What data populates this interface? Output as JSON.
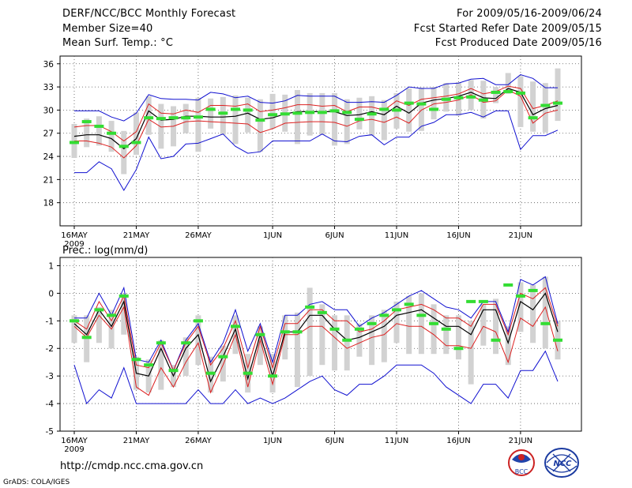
{
  "header": {
    "title": "DERF/NCC/BCC Monthly Forecast",
    "member": "Member Size=40",
    "variable": "Mean Surf. Temp.: °C",
    "period": "For 2009/05/16-2009/06/24",
    "refer": "Fcst Started Refer Date 2009/05/15",
    "produced": "Fcst Produced Date 2009/05/16"
  },
  "footer": {
    "url": "http://cmdp.ncc.cma.gov.cn",
    "grads": "GrADS: COLA/IGES",
    "logo_bcc": "BCC",
    "logo_ncc": "NCC"
  },
  "colors": {
    "envelope": "#1010d0",
    "spread": "#dd2020",
    "mean": "#000000",
    "box": "#d2d2d2",
    "marker": "#33dd33",
    "grid": "#555555"
  },
  "chart_data": [
    {
      "type": "line",
      "title": "Mean Surf. Temp.: °C",
      "ylim": [
        15,
        37
      ],
      "yticks": [
        "36",
        "33",
        "30",
        "27",
        "24",
        "21",
        "18"
      ],
      "ytick_values": [
        36,
        33,
        30,
        27,
        24,
        21,
        18
      ],
      "xticks": [
        "16MAY",
        "21MAY",
        "26MAY",
        "1JUN",
        "6JUN",
        "11JUN",
        "16JUN",
        "21JUN"
      ],
      "xtick_days": [
        1,
        6,
        11,
        17,
        22,
        27,
        32,
        37
      ],
      "x_year": "2009",
      "days": 40,
      "series": [
        {
          "name": "max",
          "values": [
            29.9,
            29.9,
            29.9,
            29.1,
            28.6,
            29.6,
            32.0,
            31.5,
            31.4,
            31.4,
            31.3,
            32.3,
            32.1,
            31.6,
            31.8,
            31.0,
            30.9,
            31.2,
            31.9,
            31.8,
            31.8,
            31.8,
            31.0,
            31.0,
            31.1,
            31.0,
            31.9,
            33.0,
            32.8,
            32.8,
            33.4,
            33.5,
            34.0,
            34.1,
            33.3,
            33.3,
            34.6,
            34.1,
            32.9,
            32.9
          ]
        },
        {
          "name": "upper",
          "values": [
            27.8,
            28.0,
            28.0,
            27.2,
            26.0,
            27.2,
            30.8,
            29.6,
            29.5,
            30.0,
            29.7,
            30.6,
            30.6,
            30.5,
            30.8,
            29.8,
            30.0,
            30.3,
            30.7,
            30.7,
            30.5,
            30.6,
            29.8,
            30.4,
            30.4,
            30.0,
            31.2,
            30.6,
            31.4,
            31.6,
            31.8,
            32.1,
            32.8,
            32.1,
            32.4,
            33.1,
            32.8,
            30.2,
            30.6,
            31.2
          ]
        },
        {
          "name": "mean",
          "values": [
            26.6,
            26.8,
            26.8,
            26.3,
            25.0,
            26.3,
            29.9,
            28.7,
            28.8,
            29.2,
            29.2,
            29.1,
            29.1,
            29.2,
            29.6,
            28.8,
            29.0,
            29.5,
            29.8,
            29.8,
            29.8,
            29.8,
            29.3,
            29.4,
            29.8,
            29.4,
            30.5,
            29.6,
            30.9,
            31.3,
            31.5,
            31.8,
            32.3,
            31.6,
            31.5,
            32.8,
            32.3,
            29.4,
            30.2,
            30.6
          ]
        },
        {
          "name": "lower",
          "values": [
            26.0,
            26.0,
            25.7,
            25.2,
            23.8,
            25.4,
            28.8,
            27.8,
            27.9,
            28.5,
            28.6,
            28.5,
            28.4,
            28.3,
            28.2,
            27.1,
            27.6,
            28.3,
            28.4,
            28.5,
            28.5,
            28.4,
            27.9,
            28.6,
            28.8,
            28.4,
            29.1,
            28.3,
            30.0,
            30.8,
            31.0,
            31.3,
            32.0,
            31.0,
            31.2,
            32.6,
            31.8,
            28.3,
            29.6,
            30.0
          ]
        },
        {
          "name": "min",
          "values": [
            21.9,
            21.9,
            23.3,
            22.4,
            19.6,
            22.3,
            26.5,
            23.7,
            24.0,
            25.6,
            25.7,
            26.3,
            26.9,
            25.3,
            24.4,
            24.6,
            26.0,
            26.0,
            26.0,
            26.0,
            26.9,
            26.0,
            25.9,
            26.6,
            26.8,
            25.5,
            26.5,
            26.5,
            27.9,
            28.4,
            29.4,
            29.4,
            29.7,
            29.1,
            29.9,
            29.9,
            24.9,
            26.7,
            26.7,
            27.4
          ]
        },
        {
          "name": "box_top",
          "values": [
            28.2,
            28.9,
            29.2,
            28.6,
            27.3,
            29.7,
            31.8,
            30.8,
            30.5,
            30.8,
            31.6,
            31.5,
            31.7,
            31.9,
            31.6,
            31.4,
            32.1,
            32.0,
            32.6,
            32.2,
            32.2,
            32.2,
            31.4,
            31.6,
            31.8,
            31.3,
            32.2,
            32.8,
            32.9,
            33.0,
            33.5,
            33.6,
            33.9,
            33.8,
            33.0,
            34.8,
            34.4,
            33.7,
            33.5,
            35.4
          ]
        },
        {
          "name": "box_bottom",
          "values": [
            23.8,
            25.2,
            25.4,
            24.6,
            21.7,
            24.2,
            26.8,
            25.0,
            25.3,
            27.0,
            24.6,
            27.6,
            26.8,
            25.6,
            27.1,
            24.6,
            27.6,
            27.2,
            25.6,
            26.7,
            26.8,
            25.4,
            25.6,
            27.5,
            26.7,
            26.1,
            27.6,
            27.2,
            27.3,
            28.8,
            29.8,
            29.3,
            30.0,
            28.9,
            30.9,
            32.1,
            27.8,
            27.2,
            27.1,
            28.6
          ]
        },
        {
          "name": "observed",
          "values": [
            25.8,
            28.5,
            27.9,
            27.0,
            25.3,
            25.8,
            29.0,
            28.9,
            29.0,
            29.0,
            29.1,
            30.1,
            29.6,
            30.1,
            30.0,
            28.7,
            29.4,
            29.5,
            29.6,
            29.7,
            29.7,
            29.9,
            29.7,
            28.8,
            29.5,
            30.1,
            30.0,
            30.9,
            30.8,
            30.1,
            31.4,
            31.6,
            31.7,
            31.3,
            32.3,
            32.4,
            32.2,
            29.0,
            30.6,
            30.9
          ]
        }
      ]
    },
    {
      "type": "line",
      "title": "Prec.: log(mm/d)",
      "ylim": [
        -5,
        1.3
      ],
      "yticks": [
        "1",
        "0",
        "-1",
        "-2",
        "-3",
        "-4",
        "-5"
      ],
      "ytick_values": [
        1,
        0,
        -1,
        -2,
        -3,
        -4,
        -5
      ],
      "xticks": [
        "16MAY",
        "21MAY",
        "26MAY",
        "1JUN",
        "6JUN",
        "11JUN",
        "16JUN",
        "21JUN"
      ],
      "xtick_days": [
        1,
        6,
        11,
        17,
        22,
        27,
        32,
        37
      ],
      "x_year": "2009",
      "days": 40,
      "series": [
        {
          "name": "max",
          "values": [
            -0.9,
            -0.9,
            0.0,
            -0.8,
            0.2,
            -2.4,
            -2.5,
            -1.7,
            -2.8,
            -1.7,
            -1.1,
            -2.5,
            -1.8,
            -0.6,
            -2.1,
            -1.1,
            -2.5,
            -0.8,
            -0.8,
            -0.4,
            -0.3,
            -0.6,
            -0.6,
            -1.2,
            -0.9,
            -0.7,
            -0.4,
            -0.1,
            0.1,
            -0.2,
            -0.5,
            -0.6,
            -0.9,
            -0.3,
            -0.3,
            -1.4,
            0.5,
            0.3,
            0.6,
            -1.1
          ]
        },
        {
          "name": "upper",
          "values": [
            -1.0,
            -1.3,
            -0.3,
            -1.0,
            -0.1,
            -2.6,
            -2.7,
            -1.8,
            -2.8,
            -1.8,
            -1.2,
            -2.6,
            -2.0,
            -1.0,
            -2.7,
            -1.2,
            -2.7,
            -1.1,
            -1.1,
            -0.6,
            -0.6,
            -1.0,
            -1.0,
            -1.4,
            -1.3,
            -1.0,
            -0.6,
            -0.5,
            -0.4,
            -0.6,
            -0.9,
            -0.9,
            -1.2,
            -0.4,
            -0.4,
            -1.5,
            0.0,
            -0.2,
            0.2,
            -1.2
          ]
        },
        {
          "name": "mean",
          "values": [
            -1.1,
            -1.5,
            -0.6,
            -1.2,
            -0.3,
            -2.9,
            -3.0,
            -2.0,
            -3.0,
            -2.0,
            -1.5,
            -3.2,
            -2.3,
            -1.3,
            -3.1,
            -1.5,
            -3.0,
            -1.4,
            -1.4,
            -0.8,
            -0.8,
            -1.3,
            -1.7,
            -1.6,
            -1.4,
            -1.2,
            -0.8,
            -0.7,
            -0.6,
            -0.9,
            -1.2,
            -1.2,
            -1.5,
            -0.6,
            -0.6,
            -1.8,
            -0.3,
            -0.6,
            0.0,
            -1.4
          ]
        },
        {
          "name": "lower",
          "values": [
            -1.2,
            -1.6,
            -0.8,
            -1.3,
            -0.5,
            -3.4,
            -3.7,
            -2.7,
            -3.4,
            -2.5,
            -1.8,
            -3.6,
            -2.6,
            -1.5,
            -3.4,
            -1.7,
            -3.3,
            -1.5,
            -1.5,
            -1.2,
            -1.2,
            -1.6,
            -2.0,
            -1.8,
            -1.6,
            -1.5,
            -1.1,
            -1.2,
            -1.2,
            -1.5,
            -1.9,
            -1.9,
            -2.0,
            -1.2,
            -1.4,
            -2.5,
            -0.9,
            -1.2,
            -0.5,
            -2.1
          ]
        },
        {
          "name": "min",
          "values": [
            -2.6,
            -4.0,
            -3.5,
            -3.8,
            -2.7,
            -4.0,
            -4.0,
            -4.0,
            -4.0,
            -4.0,
            -3.5,
            -4.0,
            -4.0,
            -3.5,
            -4.0,
            -3.8,
            -4.0,
            -3.8,
            -3.5,
            -3.2,
            -3.0,
            -3.5,
            -3.7,
            -3.3,
            -3.3,
            -3.0,
            -2.6,
            -2.6,
            -2.6,
            -2.9,
            -3.4,
            -3.7,
            -4.0,
            -3.3,
            -3.3,
            -3.8,
            -2.8,
            -2.8,
            -2.1,
            -3.2
          ]
        },
        {
          "name": "box_top",
          "values": [
            -0.8,
            -0.8,
            -0.5,
            -0.6,
            0.0,
            -2.3,
            -2.4,
            -1.7,
            -2.6,
            -1.6,
            -0.8,
            -2.3,
            -1.9,
            -0.8,
            -2.2,
            -1.2,
            -2.2,
            -0.8,
            -0.7,
            0.2,
            -0.4,
            -0.8,
            -0.8,
            -1.1,
            -0.8,
            -0.6,
            -0.3,
            -0.1,
            0.0,
            -0.4,
            -0.8,
            -0.8,
            -1.0,
            -0.4,
            -0.2,
            -1.2,
            0.4,
            0.3,
            0.6,
            -1.0
          ]
        },
        {
          "name": "box_bottom",
          "values": [
            -1.8,
            -2.5,
            -1.8,
            -2.0,
            -1.5,
            -3.5,
            -3.6,
            -3.5,
            -3.4,
            -3.0,
            -2.6,
            -3.6,
            -3.2,
            -2.2,
            -3.6,
            -2.6,
            -3.6,
            -2.4,
            -3.4,
            -3.0,
            -2.6,
            -2.8,
            -2.8,
            -2.3,
            -2.6,
            -2.5,
            -1.8,
            -2.2,
            -2.2,
            -2.2,
            -2.2,
            -2.4,
            -3.3,
            -1.9,
            -2.2,
            -2.6,
            -1.4,
            -1.8,
            -2.0,
            -2.4
          ]
        },
        {
          "name": "observed",
          "values": [
            -1.0,
            -1.6,
            -0.6,
            -0.8,
            -0.1,
            -2.4,
            -2.6,
            -1.8,
            -2.8,
            -1.8,
            -1.0,
            -2.9,
            -2.3,
            -1.2,
            -2.9,
            -1.5,
            -3.0,
            -1.4,
            -1.4,
            -0.5,
            -0.7,
            -1.3,
            -1.7,
            -1.3,
            -1.1,
            -0.8,
            -0.6,
            -0.4,
            -0.8,
            -1.1,
            -1.3,
            -2.0,
            -0.3,
            -0.3,
            -1.7,
            0.3,
            -0.1,
            0.1,
            -1.1,
            -1.7
          ]
        }
      ]
    }
  ]
}
